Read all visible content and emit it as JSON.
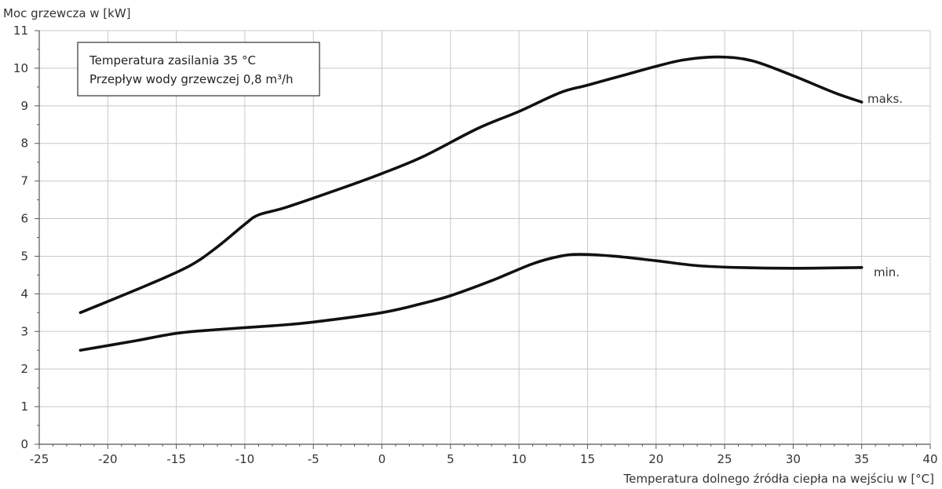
{
  "chart_data": {
    "type": "line",
    "ylabel": "Moc grzewcza w [kW]",
    "xlabel": "Temperatura dolnego źródła ciepła na wejściu w [°C]",
    "xlim": [
      -25,
      40
    ],
    "ylim": [
      0,
      11
    ],
    "x_ticks": [
      -25,
      -20,
      -15,
      -10,
      -5,
      0,
      5,
      10,
      15,
      20,
      25,
      30,
      35,
      40
    ],
    "y_ticks": [
      0,
      1,
      2,
      3,
      4,
      5,
      6,
      7,
      8,
      9,
      10,
      11
    ],
    "grid": true,
    "legend_box": {
      "line1": "Temperatura zasilania 35 °C",
      "line2": "Przepływ wody grzewczej 0,8 m³/h"
    },
    "series": [
      {
        "name": "maks.",
        "x": [
          -22,
          -17,
          -14,
          -12,
          -10,
          -9,
          -7,
          -3,
          0,
          3,
          7,
          10,
          13,
          15,
          18,
          20,
          22,
          24.5,
          27,
          30,
          33,
          35
        ],
        "y": [
          3.5,
          4.25,
          4.75,
          5.25,
          5.85,
          6.1,
          6.3,
          6.8,
          7.2,
          7.65,
          8.4,
          8.85,
          9.35,
          9.55,
          9.85,
          10.05,
          10.22,
          10.3,
          10.2,
          9.8,
          9.35,
          9.1
        ]
      },
      {
        "name": "min.",
        "x": [
          -22,
          -18,
          -15,
          -12,
          -8,
          -5,
          0,
          3,
          5,
          8,
          11,
          13,
          14.5,
          17,
          20,
          23,
          26,
          30,
          35
        ],
        "y": [
          2.5,
          2.75,
          2.95,
          3.05,
          3.15,
          3.25,
          3.5,
          3.75,
          3.95,
          4.35,
          4.8,
          5.0,
          5.05,
          5.0,
          4.88,
          4.75,
          4.7,
          4.68,
          4.7
        ]
      }
    ]
  }
}
